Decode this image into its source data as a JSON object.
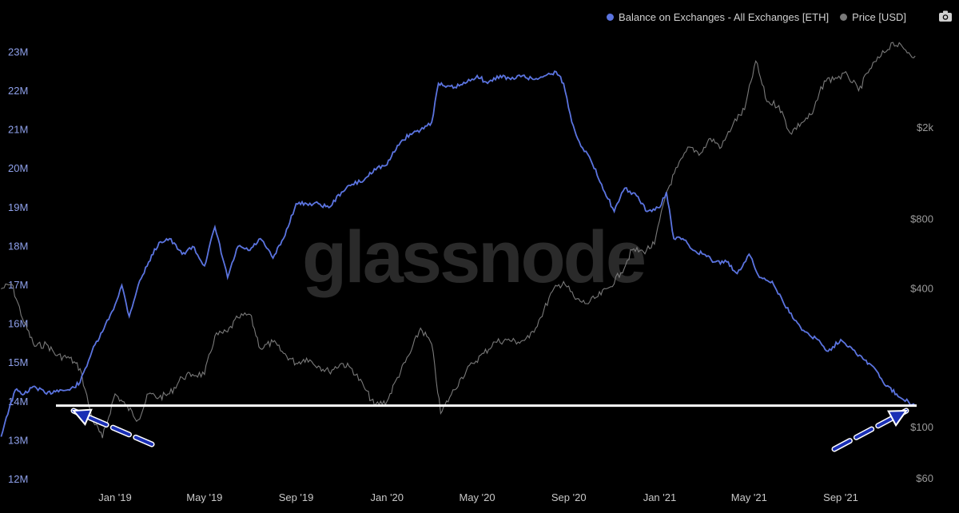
{
  "legend": {
    "balance_label": "Balance on Exchanges - All Exchanges [ETH]",
    "price_label": "Price [USD]"
  },
  "watermark": "glassnode",
  "colors": {
    "background": "#000000",
    "balance": "#5b74e0",
    "price": "#7a7a7a",
    "annotation_line": "#ffffff",
    "arrow_fill": "#1a2fb5",
    "grid": "#1c1c1c"
  },
  "icons": {
    "export": "camera-icon"
  },
  "chart_data": {
    "type": "line",
    "x_ticks": [
      "Jan '19",
      "May '19",
      "Sep '19",
      "Jan '20",
      "May '20",
      "Sep '20",
      "Jan '21",
      "May '21",
      "Sep '21"
    ],
    "y_left_ticks": [
      "12M",
      "13M",
      "14M",
      "15M",
      "16M",
      "17M",
      "18M",
      "19M",
      "20M",
      "21M",
      "22M",
      "23M"
    ],
    "y_left_range": [
      12,
      23.6
    ],
    "y_right_ticks": [
      "$60",
      "$100",
      "$400",
      "$800",
      "$2k"
    ],
    "y_right_values": [
      60,
      100,
      400,
      800,
      2000
    ],
    "y_right_scale": "log",
    "series": [
      {
        "name": "Balance on Exchanges - All Exchanges [ETH]",
        "axis": "left",
        "unit": "M ETH",
        "x": [
          "2018-08-01",
          "2018-08-08",
          "2018-08-20",
          "2018-09-01",
          "2018-09-15",
          "2018-10-01",
          "2018-10-15",
          "2018-11-01",
          "2018-11-15",
          "2018-12-01",
          "2018-12-15",
          "2019-01-01",
          "2019-01-10",
          "2019-01-20",
          "2019-02-01",
          "2019-02-15",
          "2019-03-01",
          "2019-03-15",
          "2019-04-01",
          "2019-04-15",
          "2019-05-01",
          "2019-05-15",
          "2019-06-01",
          "2019-06-15",
          "2019-07-01",
          "2019-07-15",
          "2019-08-01",
          "2019-08-15",
          "2019-09-01",
          "2019-09-15",
          "2019-10-01",
          "2019-10-15",
          "2019-11-01",
          "2019-11-15",
          "2019-12-01",
          "2019-12-15",
          "2020-01-01",
          "2020-01-15",
          "2020-02-01",
          "2020-02-15",
          "2020-03-01",
          "2020-03-10",
          "2020-03-20",
          "2020-04-01",
          "2020-04-15",
          "2020-05-01",
          "2020-05-15",
          "2020-06-01",
          "2020-06-15",
          "2020-07-01",
          "2020-07-15",
          "2020-08-01",
          "2020-08-15",
          "2020-08-25",
          "2020-09-05",
          "2020-09-15",
          "2020-10-01",
          "2020-10-15",
          "2020-11-01",
          "2020-11-15",
          "2020-12-01",
          "2020-12-15",
          "2021-01-01",
          "2021-01-10",
          "2021-01-20",
          "2021-02-01",
          "2021-02-15",
          "2021-03-01",
          "2021-03-15",
          "2021-04-01",
          "2021-04-15",
          "2021-05-01",
          "2021-05-15",
          "2021-06-01",
          "2021-06-15",
          "2021-07-01",
          "2021-07-15",
          "2021-08-01",
          "2021-08-15",
          "2021-09-01",
          "2021-09-15",
          "2021-10-01",
          "2021-10-15",
          "2021-11-01",
          "2021-11-15",
          "2021-12-01",
          "2021-12-10"
        ],
        "y": [
          13.1,
          13.6,
          14.3,
          14.2,
          14.4,
          14.2,
          14.3,
          14.3,
          14.5,
          15.3,
          15.8,
          16.5,
          17.0,
          16.2,
          17.0,
          17.6,
          18.1,
          18.2,
          17.8,
          18.0,
          17.5,
          18.5,
          17.2,
          18.0,
          17.9,
          18.2,
          17.7,
          18.2,
          19.1,
          19.1,
          19.1,
          19.0,
          19.4,
          19.6,
          19.7,
          20.0,
          20.1,
          20.6,
          20.9,
          21.0,
          21.2,
          22.2,
          22.1,
          22.1,
          22.2,
          22.4,
          22.2,
          22.4,
          22.3,
          22.4,
          22.3,
          22.4,
          22.5,
          22.2,
          21.2,
          20.7,
          20.2,
          19.6,
          18.9,
          19.5,
          19.3,
          18.9,
          19.0,
          19.4,
          18.2,
          18.2,
          17.9,
          17.8,
          17.6,
          17.6,
          17.3,
          17.8,
          17.2,
          17.1,
          16.6,
          16.1,
          15.8,
          15.6,
          15.3,
          15.6,
          15.4,
          15.1,
          14.9,
          14.4,
          14.2,
          14.0,
          13.9
        ]
      },
      {
        "name": "Price [USD]",
        "axis": "right",
        "unit": "USD",
        "x": [
          "2018-08-01",
          "2018-08-15",
          "2018-09-01",
          "2018-09-15",
          "2018-10-01",
          "2018-10-15",
          "2018-11-01",
          "2018-11-15",
          "2018-12-01",
          "2018-12-15",
          "2019-01-01",
          "2019-01-15",
          "2019-02-01",
          "2019-02-15",
          "2019-03-01",
          "2019-03-15",
          "2019-04-01",
          "2019-04-15",
          "2019-05-01",
          "2019-05-15",
          "2019-06-01",
          "2019-06-15",
          "2019-07-01",
          "2019-07-15",
          "2019-08-01",
          "2019-08-15",
          "2019-09-01",
          "2019-09-15",
          "2019-10-01",
          "2019-10-15",
          "2019-11-01",
          "2019-11-15",
          "2019-12-01",
          "2019-12-15",
          "2020-01-01",
          "2020-01-15",
          "2020-02-01",
          "2020-02-15",
          "2020-03-01",
          "2020-03-13",
          "2020-03-25",
          "2020-04-10",
          "2020-04-25",
          "2020-05-10",
          "2020-05-25",
          "2020-06-10",
          "2020-06-25",
          "2020-07-10",
          "2020-07-25",
          "2020-08-10",
          "2020-08-25",
          "2020-09-10",
          "2020-09-25",
          "2020-10-10",
          "2020-10-25",
          "2020-11-10",
          "2020-11-25",
          "2020-12-10",
          "2020-12-25",
          "2021-01-10",
          "2021-01-25",
          "2021-02-10",
          "2021-02-25",
          "2021-03-10",
          "2021-03-25",
          "2021-04-10",
          "2021-04-25",
          "2021-05-10",
          "2021-05-25",
          "2021-06-10",
          "2021-06-25",
          "2021-07-10",
          "2021-07-25",
          "2021-08-10",
          "2021-08-25",
          "2021-09-10",
          "2021-09-25",
          "2021-10-10",
          "2021-10-25",
          "2021-11-10",
          "2021-11-25",
          "2021-12-10"
        ],
        "y": [
          400,
          420,
          285,
          225,
          230,
          205,
          200,
          180,
          110,
          90,
          140,
          125,
          108,
          140,
          135,
          140,
          165,
          170,
          170,
          250,
          260,
          300,
          310,
          220,
          235,
          210,
          190,
          200,
          185,
          175,
          190,
          180,
          150,
          125,
          130,
          165,
          210,
          270,
          230,
          115,
          135,
          165,
          190,
          210,
          235,
          240,
          235,
          245,
          300,
          390,
          430,
          360,
          345,
          370,
          405,
          470,
          590,
          580,
          625,
          1050,
          1350,
          1650,
          1550,
          1800,
          1650,
          2100,
          2400,
          3900,
          2600,
          2500,
          1900,
          2100,
          2300,
          3200,
          3300,
          3400,
          2900,
          3600,
          4100,
          4700,
          4400,
          4100
        ]
      }
    ],
    "annotations": {
      "horizontal_line_value": 13.9,
      "arrows": 2
    },
    "grid": false,
    "legend_position": "top-right"
  }
}
